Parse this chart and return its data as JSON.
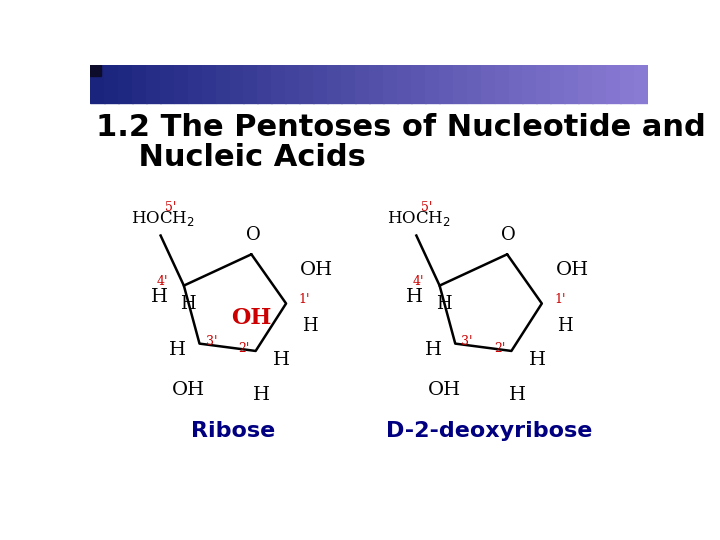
{
  "title_line1": "1.2 The Pentoses of Nucleotide and",
  "title_line2": "    Nucleic Acids",
  "title_fontsize": 22,
  "header_bg_start": "#1a237e",
  "header_bg_end": "#7986cb",
  "label_ribose": "Ribose",
  "label_deoxyribose": "D-2-deoxyribose",
  "label_color": "#000080",
  "label_fontsize": 16,
  "red_color": "#cc0000",
  "black_color": "#000000",
  "bg_color": "#ffffff",
  "ring_fontsize": 13,
  "prime_fontsize": 9,
  "hoch2_fontsize": 12
}
